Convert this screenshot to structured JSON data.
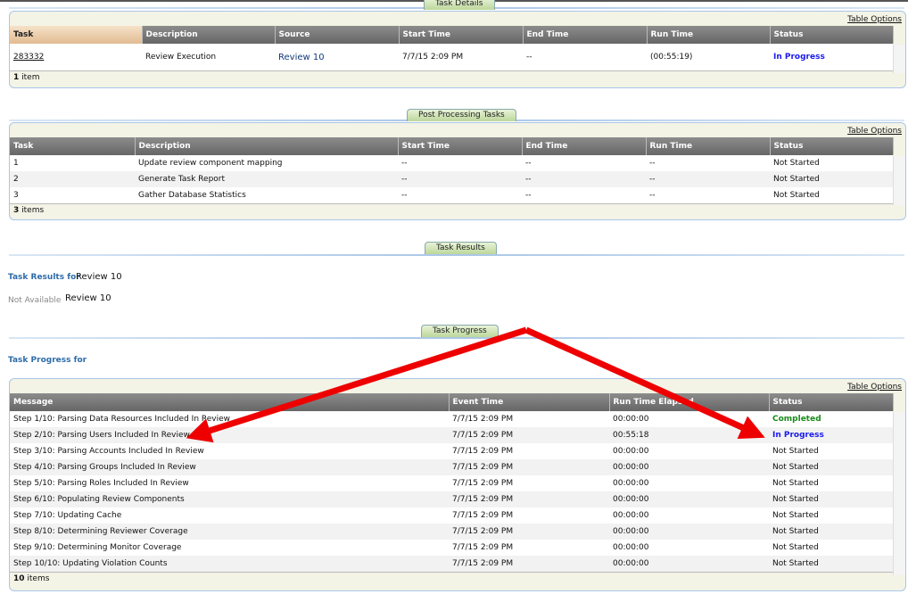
{
  "task_details": {
    "tab": "Task Details",
    "table_options": "Table Options",
    "columns": [
      "Task",
      "Description",
      "Source",
      "Start Time",
      "End Time",
      "Run Time",
      "Status"
    ],
    "rows": [
      {
        "task": "283332",
        "description": "Review Execution",
        "source": "Review 10",
        "start": "7/7/15 2:09 PM",
        "end": "--",
        "run": "(00:55:19)",
        "status": "In Progress"
      }
    ],
    "count": "1",
    "count_label": "item"
  },
  "post_processing": {
    "tab": "Post Processing Tasks",
    "table_options": "Table Options",
    "columns": [
      "Task",
      "Description",
      "Start Time",
      "End Time",
      "Run Time",
      "Status"
    ],
    "rows": [
      [
        "1",
        "Update review component mapping",
        "--",
        "--",
        "--",
        "Not Started"
      ],
      [
        "2",
        "Generate Task Report",
        "--",
        "--",
        "--",
        "Not Started"
      ],
      [
        "3",
        "Gather Database Statistics",
        "--",
        "--",
        "--",
        "Not Started"
      ]
    ],
    "count": "3",
    "count_label": "items"
  },
  "task_results": {
    "tab": "Task Results",
    "label": "Task Results for",
    "review": "Review 10",
    "not_available": "Not Available",
    "review2": "Review 10"
  },
  "task_progress": {
    "tab": "Task Progress",
    "label": "Task Progress for",
    "table_options": "Table Options",
    "columns": [
      "Message",
      "Event Time",
      "Run Time Elapsed",
      "Status"
    ],
    "rows": [
      [
        "Step 1/10: Parsing Data Resources Included In Review",
        "7/7/15 2:09 PM",
        "00:00:00",
        "Completed"
      ],
      [
        "Step 2/10: Parsing Users Included In Review",
        "7/7/15 2:09 PM",
        "00:55:18",
        "In Progress"
      ],
      [
        "Step 3/10: Parsing Accounts Included In Review",
        "7/7/15 2:09 PM",
        "00:00:00",
        "Not Started"
      ],
      [
        "Step 4/10: Parsing Groups Included In Review",
        "7/7/15 2:09 PM",
        "00:00:00",
        "Not Started"
      ],
      [
        "Step 5/10: Parsing Roles Included In Review",
        "7/7/15 2:09 PM",
        "00:00:00",
        "Not Started"
      ],
      [
        "Step 6/10: Populating Review Components",
        "7/7/15 2:09 PM",
        "00:00:00",
        "Not Started"
      ],
      [
        "Step 7/10: Updating Cache",
        "7/7/15 2:09 PM",
        "00:00:00",
        "Not Started"
      ],
      [
        "Step 8/10: Determining Reviewer Coverage",
        "7/7/15 2:09 PM",
        "00:00:00",
        "Not Started"
      ],
      [
        "Step 9/10: Determining Monitor Coverage",
        "7/7/15 2:09 PM",
        "00:00:00",
        "Not Started"
      ],
      [
        "Step 10/10: Updating Violation Counts",
        "7/7/15 2:09 PM",
        "00:00:00",
        "Not Started"
      ]
    ],
    "count": "10",
    "count_label": "items"
  },
  "colors": {
    "in_progress": "#1a1aee",
    "completed": "#1a8a1a",
    "arrow": "#ee0000"
  }
}
